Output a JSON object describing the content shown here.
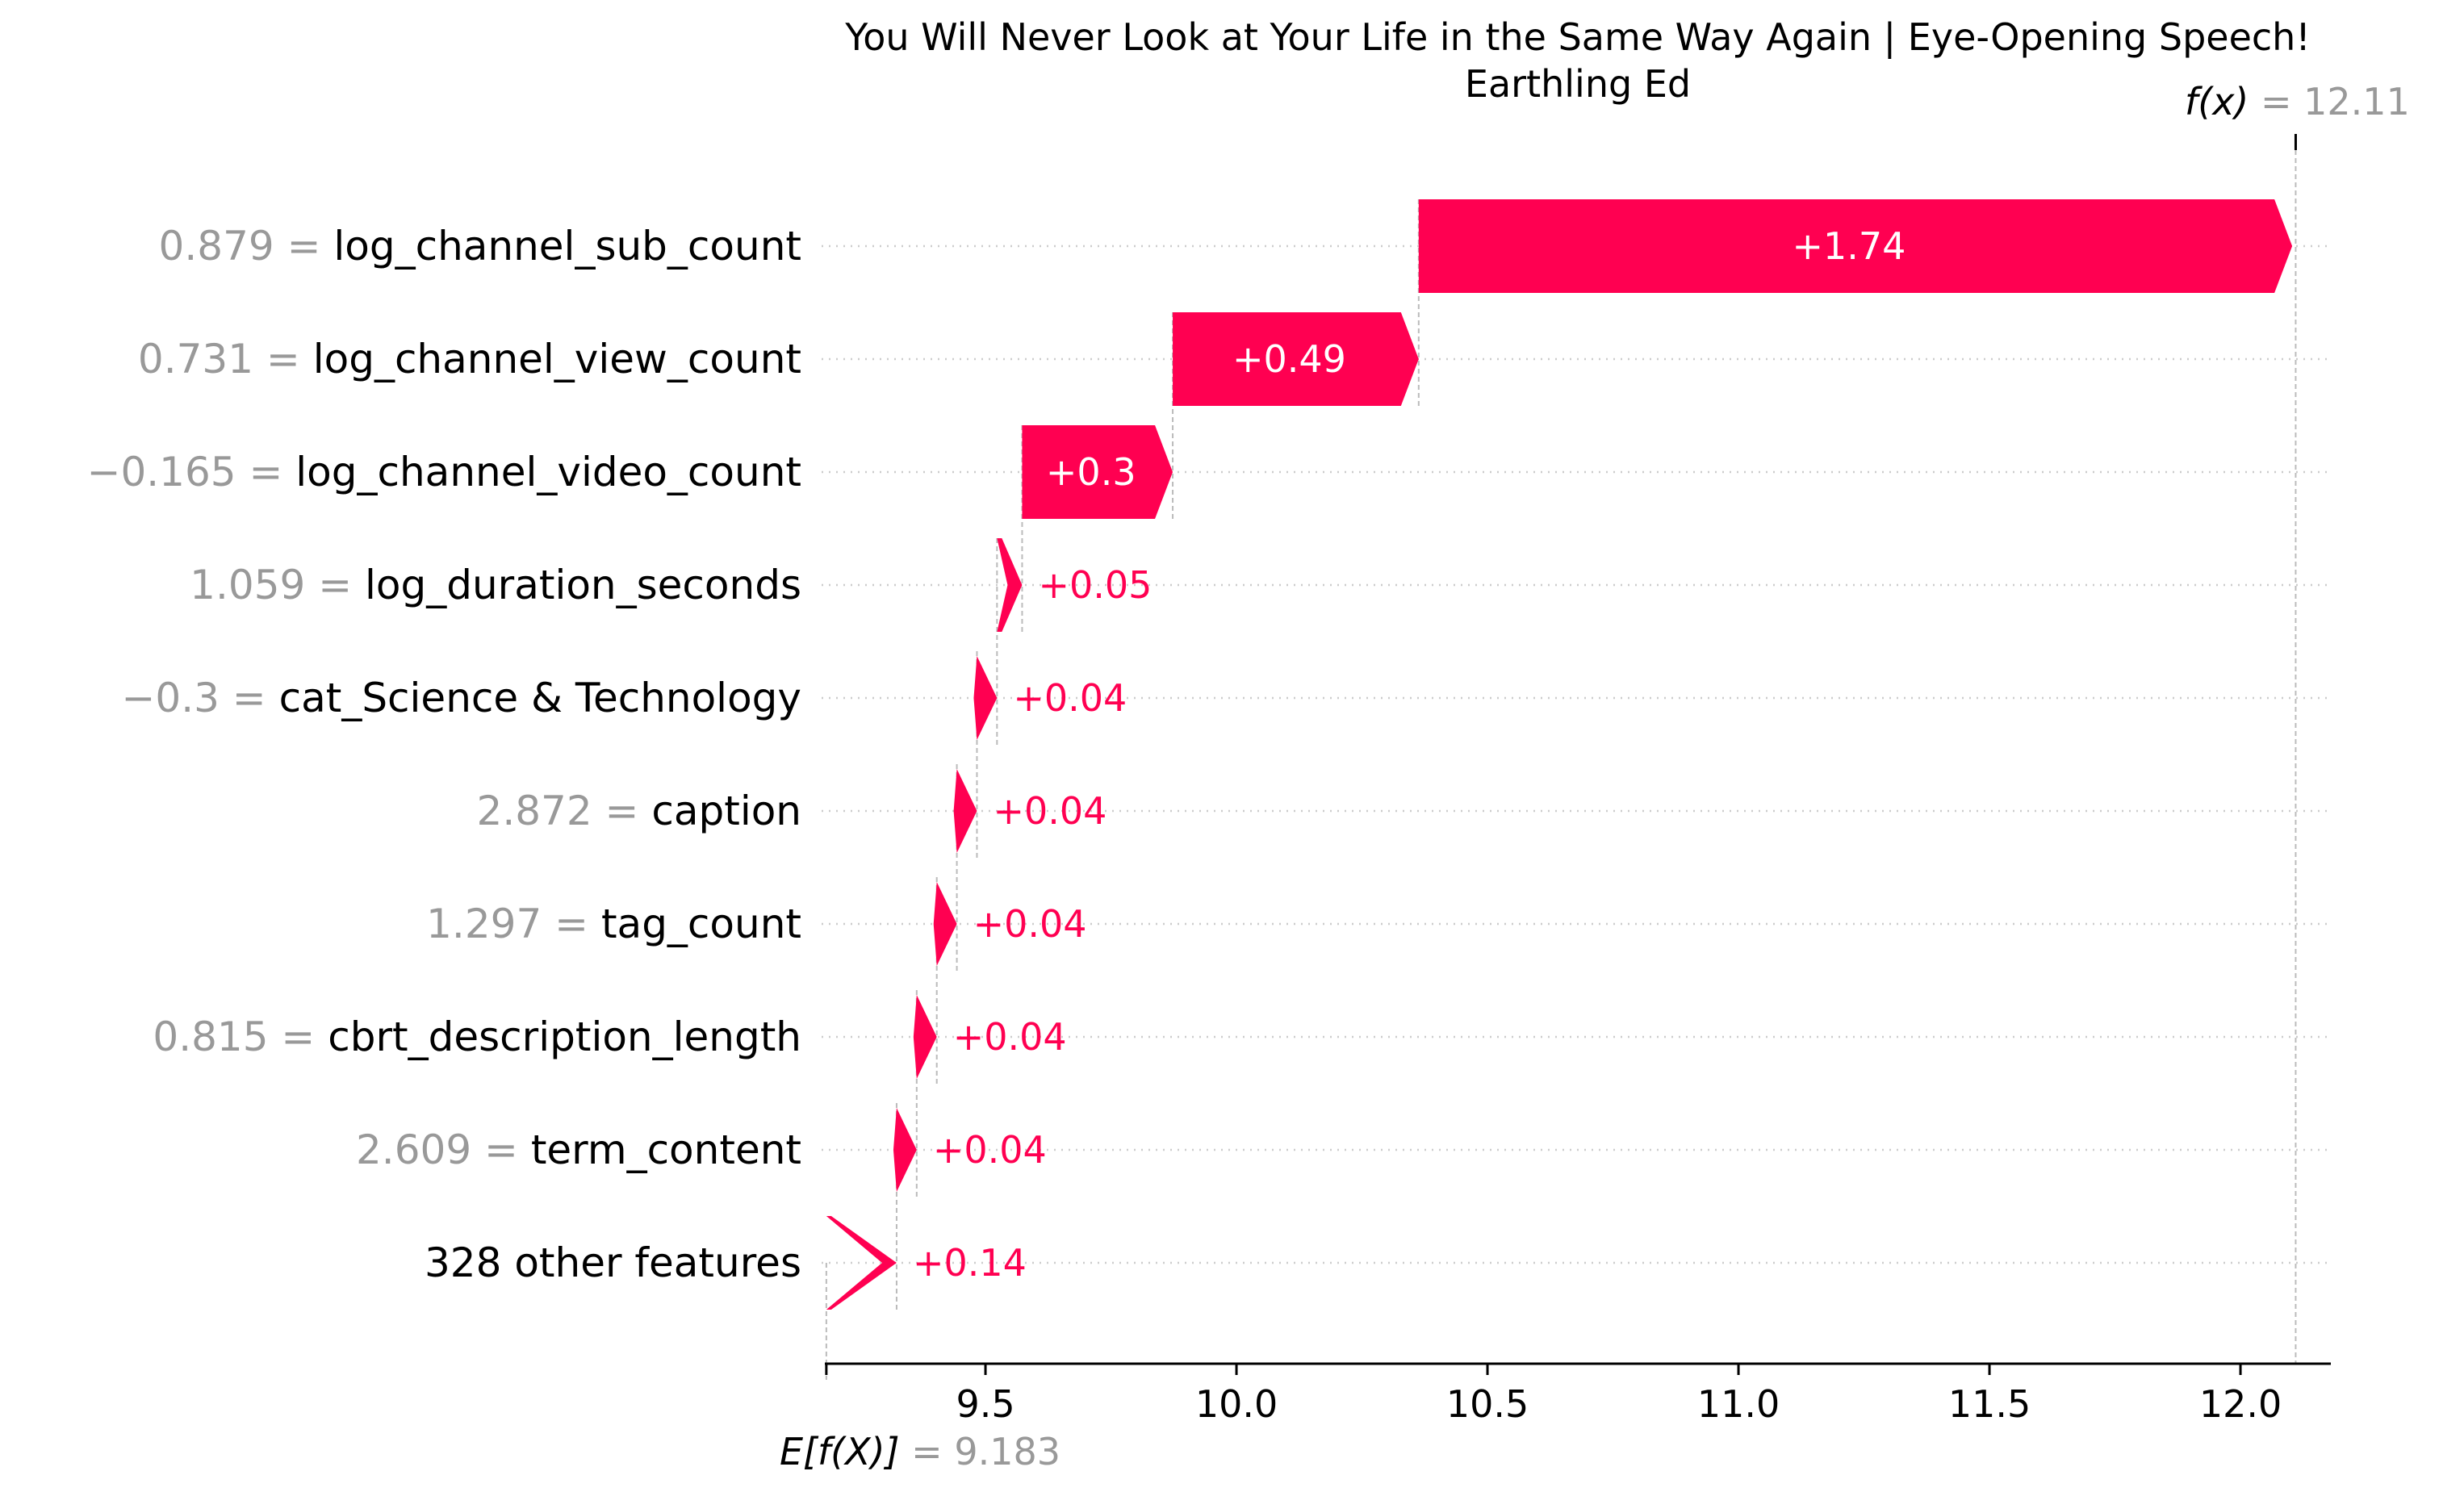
{
  "chart_data": {
    "type": "waterfall",
    "title": "You Will Never Look at Your Life in the Same Way Again | Eye-Opening Speech!\nEarthling Ed",
    "base_value": 9.183,
    "base_label": "E[f(X)]",
    "base_value_text": "= 9.183",
    "output_value": 12.11,
    "output_label": "f(x)",
    "output_value_text": "= 12.11",
    "xlim": [
      9.18,
      12.18
    ],
    "xticks": [
      9.5,
      10.0,
      10.5,
      11.0,
      11.5,
      12.0
    ],
    "xtick_labels": [
      "9.5",
      "10.0",
      "10.5",
      "11.0",
      "11.5",
      "12.0"
    ],
    "features": [
      {
        "value": "0.879",
        "name": "log_channel_sub_count",
        "contribution": 1.74,
        "label": "+1.74"
      },
      {
        "value": "0.731",
        "name": "log_channel_view_count",
        "contribution": 0.49,
        "label": "+0.49"
      },
      {
        "value": "−0.165",
        "name": "log_channel_video_count",
        "contribution": 0.3,
        "label": "+0.3"
      },
      {
        "value": "1.059",
        "name": "log_duration_seconds",
        "contribution": 0.05,
        "label": "+0.05"
      },
      {
        "value": "−0.3",
        "name": "cat_Science & Technology",
        "contribution": 0.04,
        "label": "+0.04"
      },
      {
        "value": "2.872",
        "name": "caption",
        "contribution": 0.04,
        "label": "+0.04"
      },
      {
        "value": "1.297",
        "name": "tag_count",
        "contribution": 0.04,
        "label": "+0.04"
      },
      {
        "value": "0.815",
        "name": "cbrt_description_length",
        "contribution": 0.04,
        "label": "+0.04"
      },
      {
        "value": "2.609",
        "name": "term_content",
        "contribution": 0.04,
        "label": "+0.04"
      },
      {
        "value": "",
        "name": "328 other features",
        "contribution": 0.14,
        "label": "+0.14"
      }
    ],
    "colors": {
      "positive": "#ff0051",
      "feature_value": "#999999",
      "text": "#000000",
      "grid": "#cccccc"
    },
    "grid": true
  }
}
